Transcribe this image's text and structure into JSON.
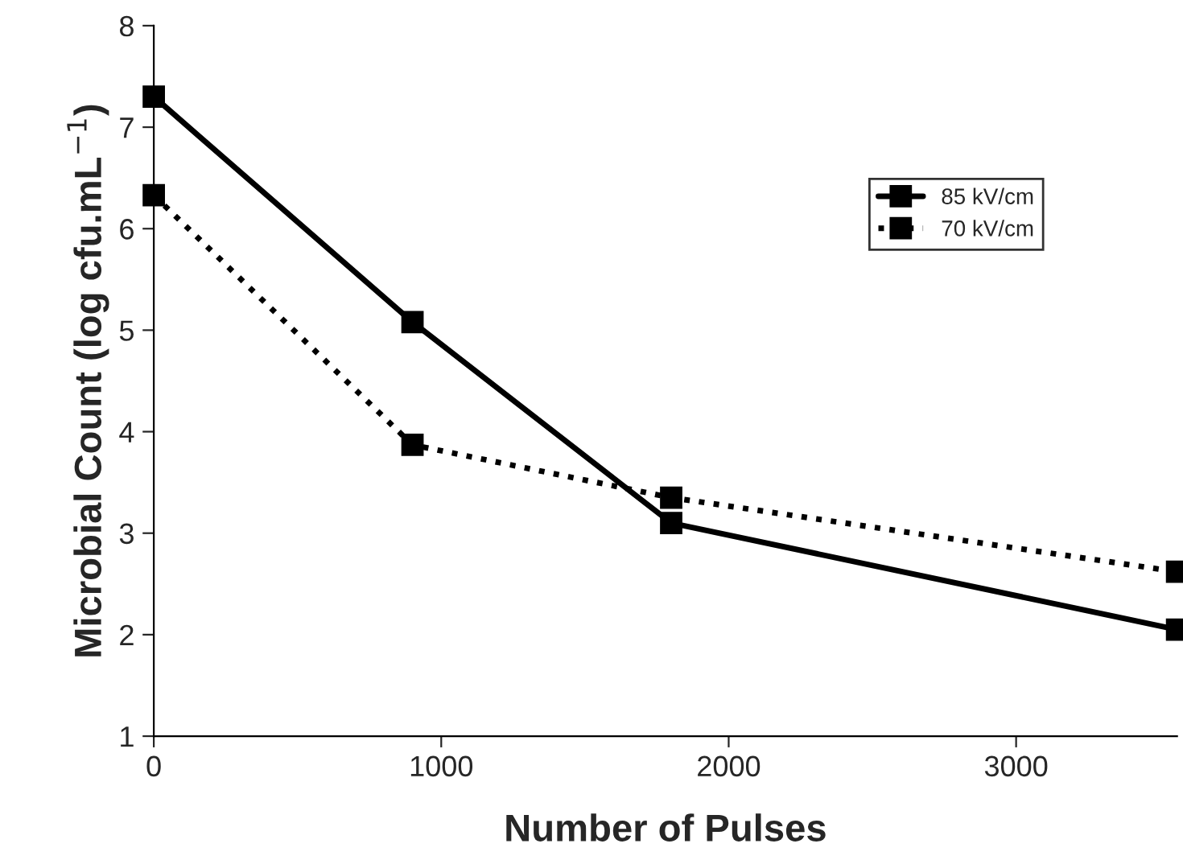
{
  "chart_data": {
    "type": "line",
    "xlabel": "Number of Pulses",
    "ylabel": "Microbial Count (log cfu.mL$^{−1}$)",
    "xlim": [
      0,
      3560
    ],
    "xticks": [
      0,
      1000,
      2000,
      3000
    ],
    "ylim": [
      1,
      8
    ],
    "yticks": [
      1,
      2,
      3,
      4,
      5,
      6,
      7,
      8
    ],
    "grid": false,
    "legend": "top right",
    "marker": "square",
    "series": [
      {
        "name": "85 kV/cm",
        "color": "#000000",
        "line_style": "solid",
        "x": [
          0,
          900,
          1800,
          3560
        ],
        "values": [
          7.3,
          5.08,
          3.1,
          2.05
        ]
      },
      {
        "name": "70 kV/cm",
        "color": "#000000",
        "line_style": "dotted",
        "x": [
          0,
          900,
          1800,
          3560
        ],
        "values": [
          6.33,
          3.87,
          3.35,
          2.62
        ]
      }
    ]
  }
}
